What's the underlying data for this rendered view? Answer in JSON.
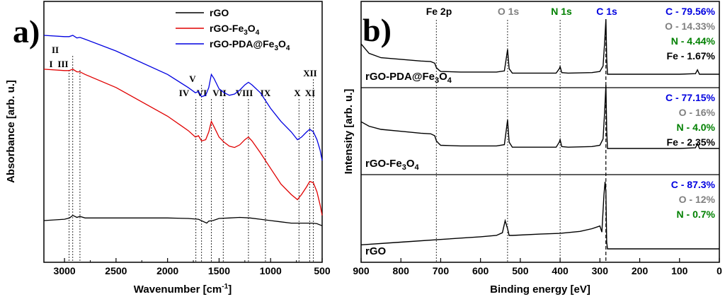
{
  "chart_data": [
    {
      "type": "line",
      "panel_label": "a)",
      "xlabel": "Wavenumber [cm",
      "xlabel_sup": "-1",
      "xlabel_end": "]",
      "ylabel": "Absorbance [arb. u.]",
      "xlim": [
        3200,
        500
      ],
      "x_ticks": [
        3000,
        2500,
        2000,
        1500,
        1000,
        500
      ],
      "legend": [
        {
          "label": "rGO",
          "color": "#000000"
        },
        {
          "label": "rGO-Fe3O4",
          "parts": [
            "rGO-Fe",
            "3",
            "O",
            "4"
          ],
          "color": "#e00000"
        },
        {
          "label": "rGO-PDA@Fe3O4",
          "parts": [
            "rGO-PDA@Fe",
            "3",
            "O",
            "4"
          ],
          "color": "#0000e0"
        }
      ],
      "peak_markers": [
        {
          "label": "I",
          "x": 2955
        },
        {
          "label": "II",
          "x": 2920
        },
        {
          "label": "III",
          "x": 2850
        },
        {
          "label": "IV",
          "x": 1725
        },
        {
          "label": "V",
          "x": 1670
        },
        {
          "label": "VI",
          "x": 1575
        },
        {
          "label": "VII",
          "x": 1460
        },
        {
          "label": "VIII",
          "x": 1215
        },
        {
          "label": "IX",
          "x": 1050
        },
        {
          "label": "X",
          "x": 725
        },
        {
          "label": "XI",
          "x": 620
        },
        {
          "label": "XII",
          "x": 585
        }
      ],
      "series": [
        {
          "name": "rGO",
          "color": "#000000",
          "x": [
            3200,
            3000,
            2950,
            2920,
            2880,
            2850,
            2800,
            2500,
            2000,
            1800,
            1700,
            1620,
            1600,
            1560,
            1500,
            1400,
            1300,
            1200,
            1100,
            1000,
            900,
            800,
            700,
            600,
            550,
            500
          ],
          "y": [
            0.16,
            0.165,
            0.17,
            0.18,
            0.172,
            0.176,
            0.17,
            0.17,
            0.17,
            0.168,
            0.165,
            0.15,
            0.158,
            0.16,
            0.168,
            0.17,
            0.172,
            0.17,
            0.165,
            0.16,
            0.155,
            0.15,
            0.15,
            0.15,
            0.148,
            0.14
          ]
        },
        {
          "name": "rGO-Fe3O4",
          "color": "#e00000",
          "x": [
            3200,
            3000,
            2955,
            2920,
            2880,
            2850,
            2800,
            2500,
            2000,
            1800,
            1730,
            1700,
            1670,
            1630,
            1600,
            1575,
            1550,
            1500,
            1450,
            1400,
            1350,
            1300,
            1250,
            1215,
            1180,
            1100,
            1000,
            900,
            800,
            740,
            700,
            650,
            620,
            585,
            550,
            520,
            500
          ],
          "y": [
            0.74,
            0.735,
            0.735,
            0.74,
            0.73,
            0.73,
            0.72,
            0.67,
            0.56,
            0.505,
            0.48,
            0.485,
            0.465,
            0.47,
            0.5,
            0.54,
            0.52,
            0.48,
            0.46,
            0.445,
            0.44,
            0.45,
            0.47,
            0.48,
            0.465,
            0.42,
            0.36,
            0.3,
            0.26,
            0.24,
            0.26,
            0.29,
            0.31,
            0.305,
            0.27,
            0.22,
            0.18
          ]
        },
        {
          "name": "rGO-PDA@Fe3O4",
          "color": "#0000e0",
          "x": [
            3200,
            3000,
            2955,
            2920,
            2880,
            2850,
            2800,
            2500,
            2000,
            1800,
            1730,
            1700,
            1670,
            1630,
            1600,
            1575,
            1550,
            1500,
            1450,
            1400,
            1350,
            1300,
            1250,
            1215,
            1180,
            1100,
            1000,
            900,
            800,
            740,
            700,
            650,
            620,
            585,
            550,
            520,
            500
          ],
          "y": [
            0.87,
            0.865,
            0.865,
            0.87,
            0.86,
            0.862,
            0.855,
            0.81,
            0.72,
            0.67,
            0.65,
            0.655,
            0.635,
            0.64,
            0.67,
            0.72,
            0.705,
            0.665,
            0.65,
            0.64,
            0.645,
            0.66,
            0.68,
            0.69,
            0.68,
            0.65,
            0.59,
            0.54,
            0.5,
            0.47,
            0.48,
            0.5,
            0.51,
            0.5,
            0.47,
            0.43,
            0.39
          ]
        }
      ]
    },
    {
      "type": "line",
      "panel_label": "b)",
      "xlabel": "Binding energy [eV]",
      "ylabel": "Intensity [arb. u.]",
      "xlim": [
        900,
        0
      ],
      "x_ticks": [
        900,
        800,
        700,
        600,
        500,
        400,
        300,
        200,
        100,
        0
      ],
      "peak_markers": [
        {
          "label": "Fe 2p",
          "x": 711,
          "color": "#000000"
        },
        {
          "label": "O 1s",
          "x": 532,
          "color": "#808080"
        },
        {
          "label": "N 1s",
          "x": 400,
          "color": "#008000"
        },
        {
          "label": "C 1s",
          "x": 285,
          "color": "#0000e0"
        }
      ],
      "subplots": [
        {
          "label": "rGO-PDA@Fe3O4",
          "label_parts": [
            "rGO-PDA@Fe",
            "3",
            "O",
            "4"
          ],
          "composition": [
            {
              "text": "C - 79.56%",
              "color": "#0000e0"
            },
            {
              "text": "O - 14.33%",
              "color": "#808080"
            },
            {
              "text": "N - 4.44%",
              "color": "#008000"
            },
            {
              "text": "Fe - 1.67%",
              "color": "#000000"
            }
          ],
          "x": [
            900,
            880,
            850,
            800,
            750,
            725,
            715,
            711,
            705,
            700,
            650,
            600,
            560,
            540,
            535,
            532,
            528,
            520,
            450,
            410,
            402,
            400,
            396,
            380,
            320,
            300,
            292,
            288,
            285,
            283,
            281,
            270,
            200,
            100,
            60,
            55,
            50,
            0
          ],
          "y": [
            0.55,
            0.38,
            0.3,
            0.27,
            0.24,
            0.23,
            0.2,
            0.12,
            0.08,
            0.05,
            0.04,
            0.04,
            0.04,
            0.06,
            0.3,
            0.45,
            0.1,
            0.02,
            0.02,
            0.02,
            0.1,
            0.14,
            0.03,
            0.02,
            0.03,
            0.05,
            0.15,
            0.6,
            1.0,
            0.3,
            0.0,
            0.0,
            0.0,
            0.0,
            0.01,
            0.08,
            0.0,
            0.0
          ]
        },
        {
          "label": "rGO-Fe3O4",
          "label_parts": [
            "rGO-Fe",
            "3",
            "O",
            "4"
          ],
          "composition": [
            {
              "text": "C - 77.15%",
              "color": "#0000e0"
            },
            {
              "text": "O - 16%",
              "color": "#808080"
            },
            {
              "text": "N - 4.0%",
              "color": "#008000"
            },
            {
              "text": "Fe - 2.35%",
              "color": "#000000"
            }
          ],
          "x": [
            900,
            880,
            850,
            800,
            750,
            725,
            715,
            711,
            705,
            700,
            650,
            600,
            560,
            540,
            535,
            532,
            528,
            520,
            450,
            410,
            402,
            400,
            396,
            380,
            320,
            300,
            292,
            288,
            285,
            283,
            281,
            270,
            200,
            100,
            60,
            55,
            50,
            0
          ],
          "y": [
            0.42,
            0.35,
            0.3,
            0.27,
            0.24,
            0.23,
            0.2,
            0.12,
            0.08,
            0.05,
            0.04,
            0.04,
            0.04,
            0.06,
            0.3,
            0.45,
            0.1,
            0.02,
            0.02,
            0.02,
            0.1,
            0.14,
            0.03,
            0.02,
            0.03,
            0.05,
            0.15,
            0.6,
            1.0,
            0.3,
            0.0,
            0.0,
            0.0,
            0.0,
            0.01,
            0.08,
            0.0,
            0.0
          ]
        },
        {
          "label": "rGO",
          "label_parts": [
            "rGO"
          ],
          "composition": [
            {
              "text": "C - 87.3%",
              "color": "#0000e0"
            },
            {
              "text": "O - 12%",
              "color": "#808080"
            },
            {
              "text": "N - 0.7%",
              "color": "#008000"
            }
          ],
          "x": [
            900,
            800,
            700,
            600,
            560,
            545,
            538,
            532,
            528,
            520,
            450,
            400,
            350,
            320,
            300,
            295,
            290,
            287,
            285,
            283,
            281,
            270,
            200,
            100,
            0
          ],
          "y": [
            0.06,
            0.1,
            0.14,
            0.18,
            0.2,
            0.24,
            0.42,
            0.3,
            0.2,
            0.2,
            0.22,
            0.23,
            0.26,
            0.3,
            0.34,
            0.25,
            0.8,
            1.0,
            0.85,
            0.1,
            0.0,
            0.0,
            0.0,
            0.0,
            0.0
          ]
        }
      ]
    }
  ]
}
